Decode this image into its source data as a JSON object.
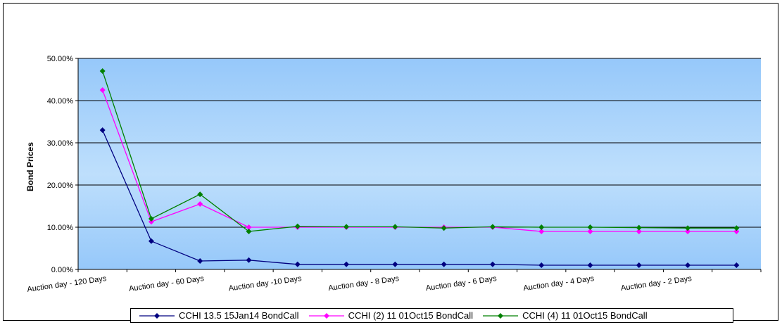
{
  "chart_data": {
    "type": "line",
    "title": "",
    "xlabel": "",
    "ylabel": "Bond Prices",
    "ylim": [
      0,
      0.5
    ],
    "yticks": [
      0,
      0.1,
      0.2,
      0.3,
      0.4,
      0.5
    ],
    "ytick_labels": [
      "0.00%",
      "10.00%",
      "20.00%",
      "30.00%",
      "40.00%",
      "50.00%"
    ],
    "categories": [
      "Auction day - 120 Days",
      "",
      "Auction day - 60 Days",
      "",
      "Auction day -10 Days",
      "",
      "Auction day - 8 Days",
      "",
      "Auction day - 6 Days",
      "",
      "Auction day - 4 Days",
      "",
      "Auction day - 2 Days",
      ""
    ],
    "grid": true,
    "legend_position": "bottom",
    "series": [
      {
        "name": "CCHI 13.5 15Jan14 BondCall",
        "color": "#000080",
        "marker": "diamond",
        "values": [
          0.33,
          0.067,
          0.02,
          0.022,
          0.012,
          0.012,
          0.012,
          0.012,
          0.012,
          0.01,
          0.01,
          0.01,
          0.01,
          0.01
        ]
      },
      {
        "name": "CCHI (2) 11 01Oct15 BondCall",
        "color": "#FF00FF",
        "marker": "diamond",
        "values": [
          0.425,
          0.113,
          0.155,
          0.1,
          0.1,
          0.1,
          0.1,
          0.1,
          0.1,
          0.09,
          0.09,
          0.09,
          0.09,
          0.09
        ]
      },
      {
        "name": "CCHI (4) 11 01Oct15 BondCall",
        "color": "#008000",
        "marker": "diamond",
        "values": [
          0.47,
          0.12,
          0.178,
          0.09,
          0.102,
          0.101,
          0.101,
          0.098,
          0.101,
          0.1,
          0.1,
          0.099,
          0.098,
          0.098
        ]
      }
    ]
  }
}
